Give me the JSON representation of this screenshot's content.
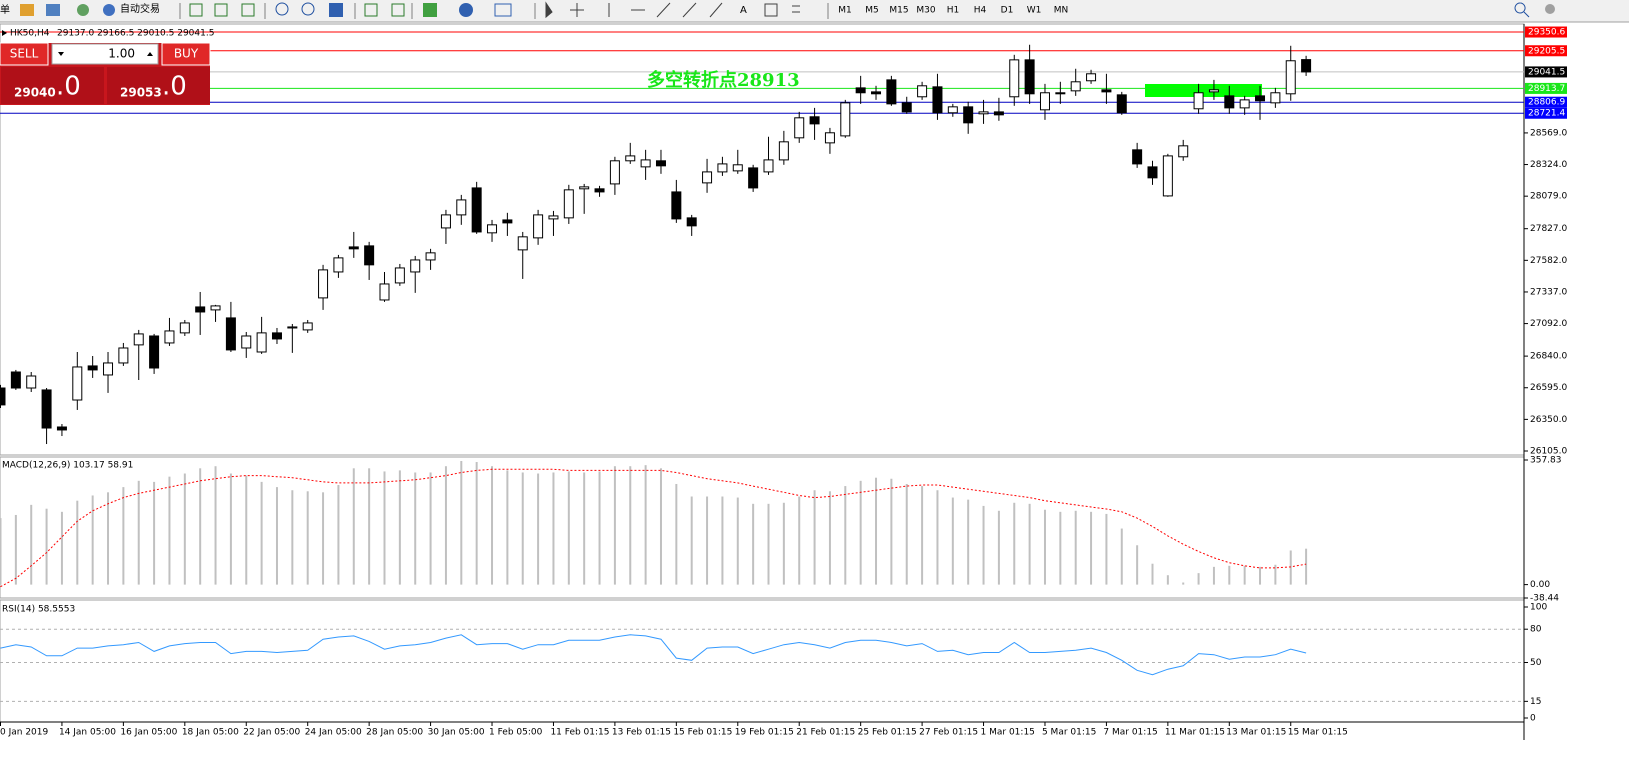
{
  "toolbar": {
    "menu": "单",
    "auto_trading": "自动交易",
    "timeframes": [
      "M1",
      "M5",
      "M15",
      "M30",
      "H1",
      "H4",
      "D1",
      "W1",
      "MN"
    ]
  },
  "trade_panel": {
    "sell": "SELL",
    "lot": "1.00",
    "buy": "BUY",
    "bid_main": "29040",
    "bid_frac": ".0",
    "ask_main": "29053",
    "ask_frac": ".0"
  },
  "chart_data": [
    {
      "type": "candlestick",
      "title": "HK50,H4",
      "subtitle": "29137.0 29166.5 29010.5 29041.5",
      "annotation": "多空转折点28913",
      "annotation_color": "#19e619",
      "categories": [
        "0 Jan 2019",
        null,
        null,
        null,
        "14 Jan 05:00",
        null,
        null,
        null,
        "16 Jan 05:00",
        null,
        null,
        null,
        "18 Jan 05:00",
        null,
        null,
        null,
        "22 Jan 05:00",
        null,
        null,
        null,
        "24 Jan 05:00",
        null,
        null,
        null,
        "28 Jan 05:00",
        null,
        null,
        null,
        "30 Jan 05:00",
        null,
        null,
        null,
        "1 Feb 05:00",
        null,
        null,
        null,
        "11 Feb 01:15",
        null,
        null,
        null,
        "13 Feb 01:15",
        null,
        null,
        null,
        "15 Feb 01:15",
        null,
        null,
        null,
        "19 Feb 01:15",
        null,
        null,
        null,
        "21 Feb 01:15",
        null,
        null,
        null,
        "25 Feb 01:15",
        null,
        null,
        null,
        "27 Feb 01:15",
        null,
        null,
        null,
        "1 Mar 01:15",
        null,
        null,
        null,
        "5 Mar 01:15",
        null,
        null,
        null,
        "7 Mar 01:15",
        null,
        null,
        null,
        "11 Mar 01:15",
        null,
        null,
        null,
        "13 Mar 01:15",
        null,
        null,
        null,
        "15 Mar 01:15",
        null
      ],
      "open": [
        26593,
        26717,
        26593,
        26578,
        26291,
        26500,
        26764,
        26694,
        26787,
        26927,
        26996,
        26942,
        27020,
        27221,
        27198,
        27136,
        26903,
        26872,
        27020,
        27058,
        27043,
        27291,
        27492,
        27686,
        27694,
        27275,
        27407,
        27492,
        27585,
        27833,
        27934,
        28143,
        27795,
        27895,
        27663,
        27756,
        27903,
        27911,
        28136,
        28136,
        28174,
        28353,
        28306,
        28353,
        28112,
        27911,
        28182,
        28267,
        28275,
        28298,
        28267,
        28360,
        28531,
        28694,
        28492,
        28546,
        28918,
        28887,
        28980,
        28802,
        28849,
        28926,
        28725,
        28771,
        28717,
        28732,
        28849,
        29135,
        28748,
        28880,
        28895,
        28973,
        28903,
        28864,
        28438,
        28306,
        28081,
        28384,
        28756,
        28887,
        28856,
        28763,
        28856,
        28802,
        28872,
        29137
      ],
      "high": [
        26617,
        26733,
        26717,
        26593,
        26314,
        26872,
        26841,
        26872,
        26942,
        27043,
        27012,
        27136,
        27120,
        27337,
        27237,
        27260,
        27027,
        27144,
        27058,
        27089,
        27120,
        27547,
        27624,
        27802,
        27725,
        27492,
        27554,
        27616,
        27671,
        27973,
        28089,
        28190,
        27895,
        27950,
        27802,
        27973,
        27965,
        28167,
        28174,
        28159,
        28384,
        28492,
        28438,
        28438,
        28205,
        27934,
        28368,
        28384,
        28438,
        28322,
        28539,
        28585,
        28732,
        28763,
        28608,
        28825,
        29011,
        28934,
        29011,
        28849,
        28965,
        29027,
        28794,
        28810,
        28825,
        28841,
        29174,
        29252,
        28949,
        28965,
        29066,
        29058,
        29027,
        28887,
        28492,
        28353,
        28407,
        28515,
        28949,
        28980,
        28934,
        28856,
        28934,
        28918,
        29244,
        29166.5
      ],
      "low": [
        26438,
        26578,
        26562,
        26159,
        26221,
        26423,
        26671,
        26555,
        26764,
        26655,
        26702,
        26919,
        26996,
        27004,
        27105,
        26872,
        26826,
        26857,
        26934,
        26865,
        27020,
        27198,
        27446,
        27601,
        27430,
        27260,
        27384,
        27330,
        27508,
        27709,
        27857,
        27787,
        27725,
        27771,
        27438,
        27702,
        27771,
        27864,
        27942,
        28074,
        28089,
        28329,
        28205,
        28252,
        27872,
        27771,
        28105,
        28236,
        28252,
        28112,
        28244,
        28322,
        28492,
        28515,
        28407,
        28531,
        28794,
        28825,
        28779,
        28717,
        28825,
        28670,
        28694,
        28562,
        28639,
        28663,
        28779,
        28794,
        28670,
        28794,
        28856,
        28949,
        28794,
        28709,
        28298,
        28167,
        28074,
        28353,
        28717,
        28825,
        28717,
        28709,
        28670,
        28763,
        28818,
        29010.5
      ],
      "close": [
        26462,
        26593,
        26686,
        26283,
        26268,
        26756,
        26733,
        26787,
        26903,
        27012,
        26748,
        27035,
        27097,
        27182,
        27229,
        26888,
        26996,
        27020,
        26973,
        27066,
        27097,
        27508,
        27601,
        27671,
        27547,
        27399,
        27523,
        27585,
        27640,
        27934,
        28050,
        27802,
        27857,
        27872,
        27764,
        27934,
        27926,
        28128,
        28151,
        28112,
        28353,
        28391,
        28360,
        28314,
        27903,
        27849,
        28267,
        28329,
        28322,
        28143,
        28360,
        28500,
        28686,
        28639,
        28570,
        28802,
        28880,
        28872,
        28794,
        28732,
        28934,
        28725,
        28771,
        28647,
        28732,
        28709,
        29135,
        28872,
        28880,
        28872,
        28965,
        29027,
        28887,
        28725,
        28329,
        28221,
        28391,
        28469,
        28880,
        28903,
        28763,
        28825,
        28818,
        28880,
        29128,
        29041.5
      ],
      "ylim": [
        26074,
        29405
      ],
      "yticks": [
        {
          "value": 26105,
          "label": "26105.0"
        },
        {
          "value": 26350,
          "label": "26350.0"
        },
        {
          "value": 26595,
          "label": "26595.0"
        },
        {
          "value": 26840,
          "label": "26840.0"
        },
        {
          "value": 27092,
          "label": "27092.0"
        },
        {
          "value": 27337,
          "label": "27337.0"
        },
        {
          "value": 27582,
          "label": "27582.0"
        },
        {
          "value": 27827,
          "label": "27827.0"
        },
        {
          "value": 28079,
          "label": "28079.0"
        },
        {
          "value": 28324,
          "label": "28324.0"
        },
        {
          "value": 28569,
          "label": "28569.0"
        }
      ],
      "levels": [
        {
          "value": 29350.6,
          "label": "29350.6",
          "color": "#ff0000",
          "line_color": "#ff0000"
        },
        {
          "value": 29205.5,
          "label": "29205.5",
          "color": "#ff0000",
          "line_color": "#ff0000"
        },
        {
          "value": 29041.5,
          "label": "29041.5",
          "color": "#000000",
          "line_color": "#c0c0c0"
        },
        {
          "value": 28913.7,
          "label": "28913.7",
          "color": "#19e619",
          "line_color": "#19e619"
        },
        {
          "value": 28806.9,
          "label": "28806.9",
          "color": "#0000ff",
          "line_color": "#0000c0"
        },
        {
          "value": 28721.4,
          "label": "28721.4",
          "color": "#0000ff",
          "line_color": "#0000c0"
        }
      ]
    },
    {
      "type": "macd",
      "title": "MACD(12,26,9) 103.17 58.91",
      "color": "#c0c0c0",
      "signal_color": "#ff0000",
      "values": [
        191,
        200,
        229,
        218,
        209,
        241,
        256,
        265,
        280,
        298,
        295,
        310,
        319,
        334,
        340,
        319,
        313,
        295,
        280,
        271,
        268,
        265,
        286,
        334,
        334,
        325,
        328,
        322,
        322,
        340,
        355,
        352,
        340,
        328,
        322,
        319,
        322,
        325,
        322,
        325,
        340,
        340,
        343,
        334,
        289,
        253,
        253,
        253,
        250,
        232,
        232,
        235,
        253,
        271,
        268,
        283,
        298,
        307,
        304,
        289,
        283,
        271,
        250,
        244,
        226,
        212,
        235,
        232,
        215,
        209,
        212,
        209,
        203,
        161,
        113,
        60,
        27,
        6,
        33,
        51,
        54,
        54,
        51,
        57,
        98,
        103.17
      ],
      "signal": [
        -6,
        18,
        54,
        92,
        137,
        182,
        212,
        232,
        250,
        262,
        271,
        280,
        289,
        298,
        304,
        310,
        313,
        313,
        310,
        307,
        301,
        295,
        292,
        292,
        292,
        295,
        298,
        301,
        307,
        313,
        322,
        328,
        331,
        331,
        331,
        331,
        331,
        328,
        328,
        328,
        328,
        328,
        328,
        328,
        322,
        313,
        304,
        298,
        292,
        283,
        274,
        265,
        256,
        250,
        253,
        259,
        265,
        271,
        277,
        283,
        286,
        286,
        280,
        274,
        268,
        262,
        256,
        250,
        241,
        235,
        229,
        223,
        217,
        209,
        191,
        167,
        140,
        116,
        95,
        77,
        63,
        54,
        48,
        48,
        51,
        58.91
      ],
      "ylim": [
        -38.44,
        357.83
      ],
      "yticks": [
        {
          "value": 357.83,
          "label": "357.83"
        },
        {
          "value": 0,
          "label": "0.00"
        },
        {
          "value": -38.44,
          "label": "-38.44"
        }
      ]
    },
    {
      "type": "line",
      "title": "RSI(14) 58.5553",
      "color": "#3399ff",
      "values": [
        63,
        66,
        64,
        56,
        56,
        63,
        63,
        65,
        66,
        68,
        60,
        65,
        67,
        68,
        68,
        58,
        60,
        60,
        59,
        60,
        61,
        71,
        73,
        74,
        69,
        62,
        65,
        66,
        68,
        72,
        75,
        66,
        67,
        67,
        62,
        66,
        66,
        70,
        70,
        70,
        73,
        75,
        74,
        71,
        54,
        52,
        63,
        64,
        64,
        58,
        62,
        66,
        68,
        66,
        63,
        68,
        70,
        70,
        68,
        65,
        67,
        60,
        61,
        57,
        59,
        59,
        68,
        59,
        59,
        60,
        61,
        63,
        59,
        52,
        43,
        39,
        44,
        47,
        58,
        57,
        53,
        55,
        55,
        57,
        62,
        58.5553
      ],
      "ylim": [
        0,
        100
      ],
      "yticks": [
        100,
        80,
        50,
        15,
        0
      ]
    }
  ]
}
